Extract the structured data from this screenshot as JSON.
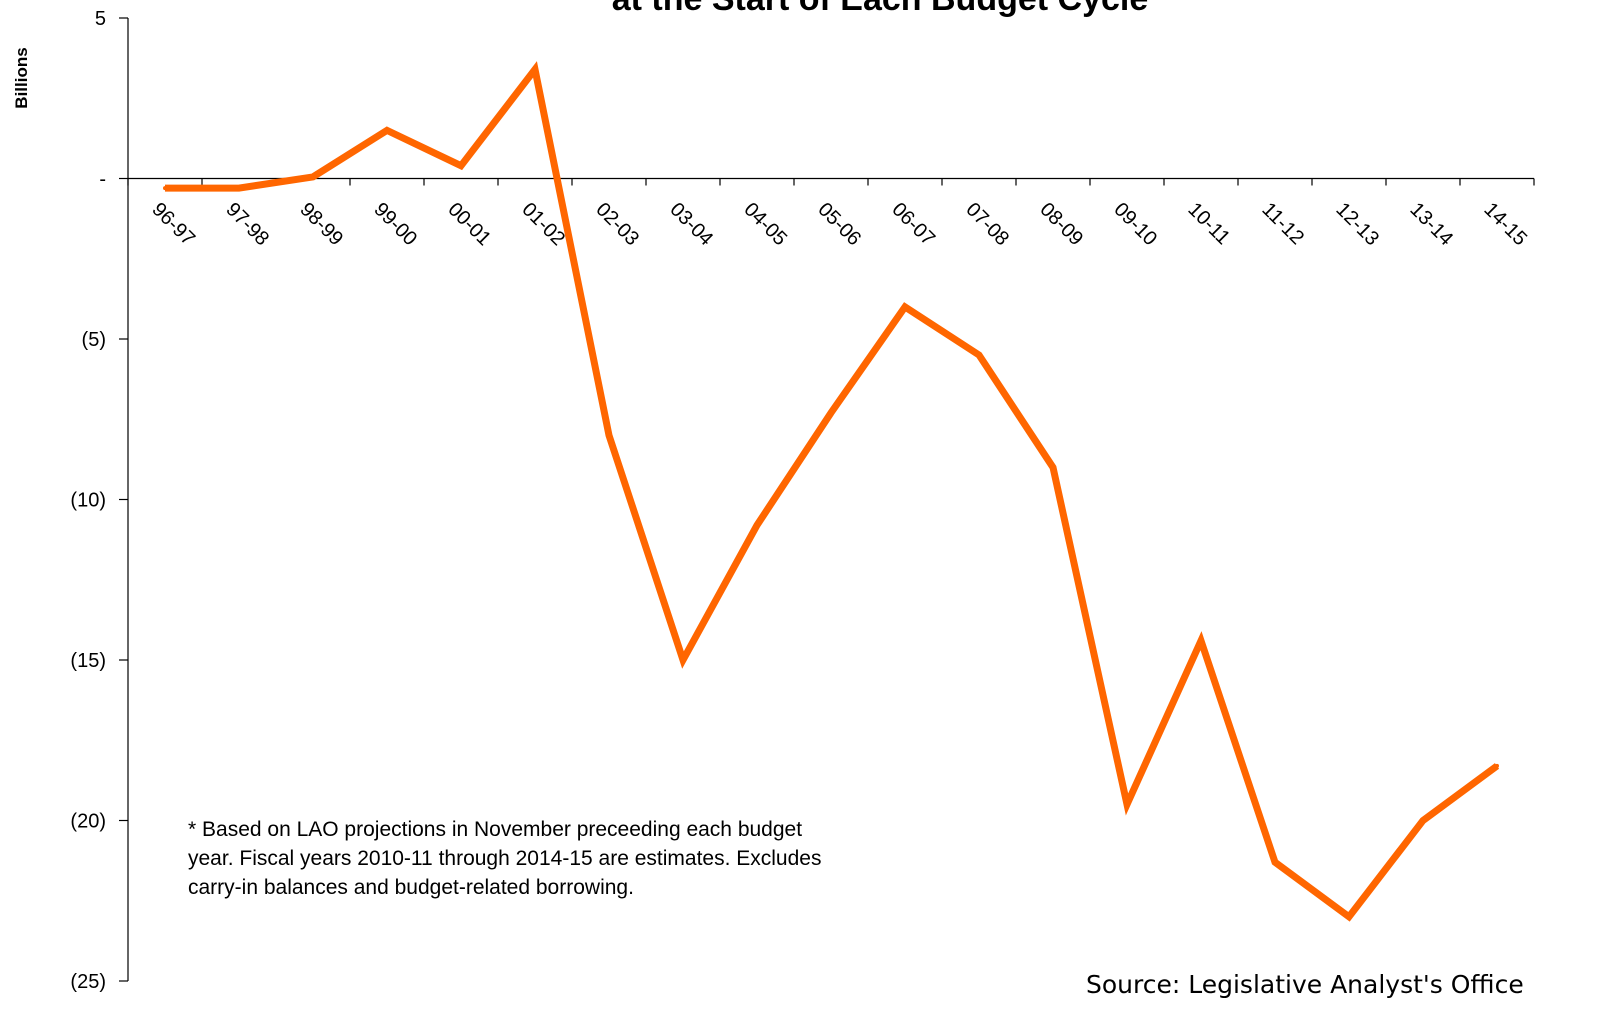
{
  "chart_data": {
    "type": "line",
    "title": "at the Start of Each Budget Cycle",
    "ylabel": "Billions",
    "xlabel": "",
    "categories": [
      "96-97",
      "97-98",
      "98-99",
      "99-00",
      "00-01",
      "01-02",
      "02-03",
      "03-04",
      "04-05",
      "05-06",
      "06-07",
      "07-08",
      "08-09",
      "09-10",
      "10-11",
      "11-12",
      "12-13",
      "13-14",
      "14-15"
    ],
    "series": [
      {
        "values": [
          -0.3,
          -0.3,
          0.05,
          1.5,
          0.4,
          3.4,
          -8.0,
          -15.0,
          -10.8,
          -7.3,
          -4.0,
          -5.5,
          -9.0,
          -19.5,
          -14.4,
          -21.3,
          -23.0,
          -20.0,
          -18.3
        ]
      }
    ],
    "ylim": [
      -25,
      5
    ],
    "yticks": [
      {
        "value": 5,
        "label": "5"
      },
      {
        "value": 0,
        "label": "-"
      },
      {
        "value": -5,
        "label": "(5)"
      },
      {
        "value": -10,
        "label": "(10)"
      },
      {
        "value": -15,
        "label": "(15)"
      },
      {
        "value": -20,
        "label": "(20)"
      },
      {
        "value": -25,
        "label": "(25)"
      }
    ],
    "grid": false,
    "line_color": "#ff6600",
    "footnote": "* Based on LAO projections in November preceeding each budget year.  Fiscal years 2010-11 through 2014-15 are estimates.  Excludes carry-in balances and budget-related borrowing.",
    "source": "Source:  Legislative Analyst's Office"
  }
}
